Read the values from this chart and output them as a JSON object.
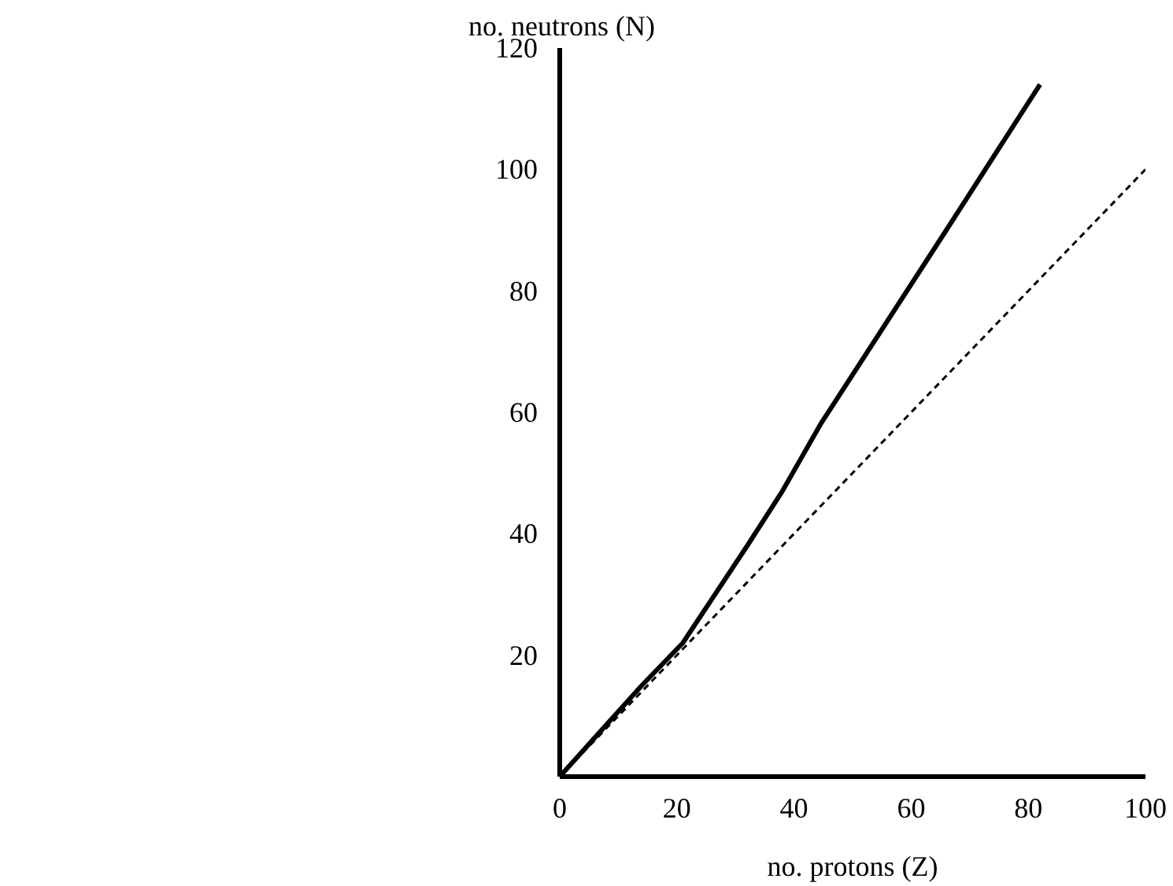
{
  "chart_data": {
    "type": "line",
    "xlabel": "no. protons (Z)",
    "ylabel": "no. neutrons (N)",
    "xlim": [
      0,
      100
    ],
    "ylim": [
      0,
      120
    ],
    "xticks": [
      0,
      20,
      40,
      60,
      80,
      100
    ],
    "yticks": [
      20,
      40,
      60,
      80,
      100,
      120
    ],
    "grid": false,
    "marker": "none",
    "series": [
      {
        "color": "#000000",
        "line_style": "solid",
        "x": [
          0,
          14,
          21,
          32,
          38,
          44.5,
          66,
          82
        ],
        "values": [
          0,
          15,
          22,
          38,
          47,
          58,
          90,
          114
        ]
      },
      {
        "color": "#000000",
        "line_style": "dashed",
        "x": [
          0,
          100
        ],
        "values": [
          0,
          100
        ]
      }
    ]
  }
}
